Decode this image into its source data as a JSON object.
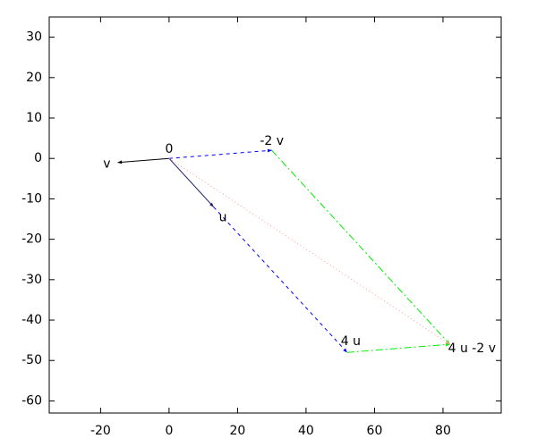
{
  "chart_data": {
    "type": "vector",
    "xlim": [
      -35,
      97
    ],
    "ylim": [
      -63,
      35
    ],
    "xticks": [
      -20,
      0,
      20,
      40,
      60,
      80
    ],
    "yticks": [
      30,
      20,
      10,
      0,
      -10,
      -20,
      -30,
      -40,
      -50,
      -60
    ],
    "series": [
      {
        "color": "#1a1a66",
        "style": "solid",
        "arrow": true,
        "x": [
          0,
          13
        ],
        "y": [
          0,
          -12
        ]
      },
      {
        "color": "#000000",
        "style": "solid",
        "arrow": true,
        "x": [
          0,
          -15
        ],
        "y": [
          0,
          -1
        ]
      },
      {
        "color": "#0000ff",
        "style": "dashed",
        "arrow": true,
        "x": [
          0,
          30
        ],
        "y": [
          0,
          2
        ]
      },
      {
        "color": "#0000ff",
        "style": "dashed",
        "arrow": true,
        "x": [
          13,
          52
        ],
        "y": [
          -12,
          -48
        ]
      },
      {
        "color": "#00ee00",
        "style": "dashdot",
        "arrow": true,
        "x": [
          30,
          82
        ],
        "y": [
          2,
          -46
        ]
      },
      {
        "color": "#00ee00",
        "style": "dashdot",
        "arrow": true,
        "x": [
          52,
          82
        ],
        "y": [
          -48,
          -46
        ]
      },
      {
        "color": "#ff9999",
        "style": "dotted",
        "arrow": true,
        "x": [
          0,
          82
        ],
        "y": [
          0,
          -46
        ]
      }
    ],
    "annotations": [
      {
        "text": "0",
        "x": 0,
        "y": 0,
        "position": "above"
      },
      {
        "text": "v",
        "x": -15,
        "y": -1,
        "position": "left"
      },
      {
        "text": "u",
        "x": 13,
        "y": -12,
        "position": "below-right"
      },
      {
        "text": "-2 v",
        "x": 30,
        "y": 2,
        "position": "above"
      },
      {
        "text": "4 u",
        "x": 52,
        "y": -48,
        "position": "above-left"
      },
      {
        "text": "4 u -2 v",
        "x": 82,
        "y": -46,
        "position": "right"
      }
    ]
  }
}
